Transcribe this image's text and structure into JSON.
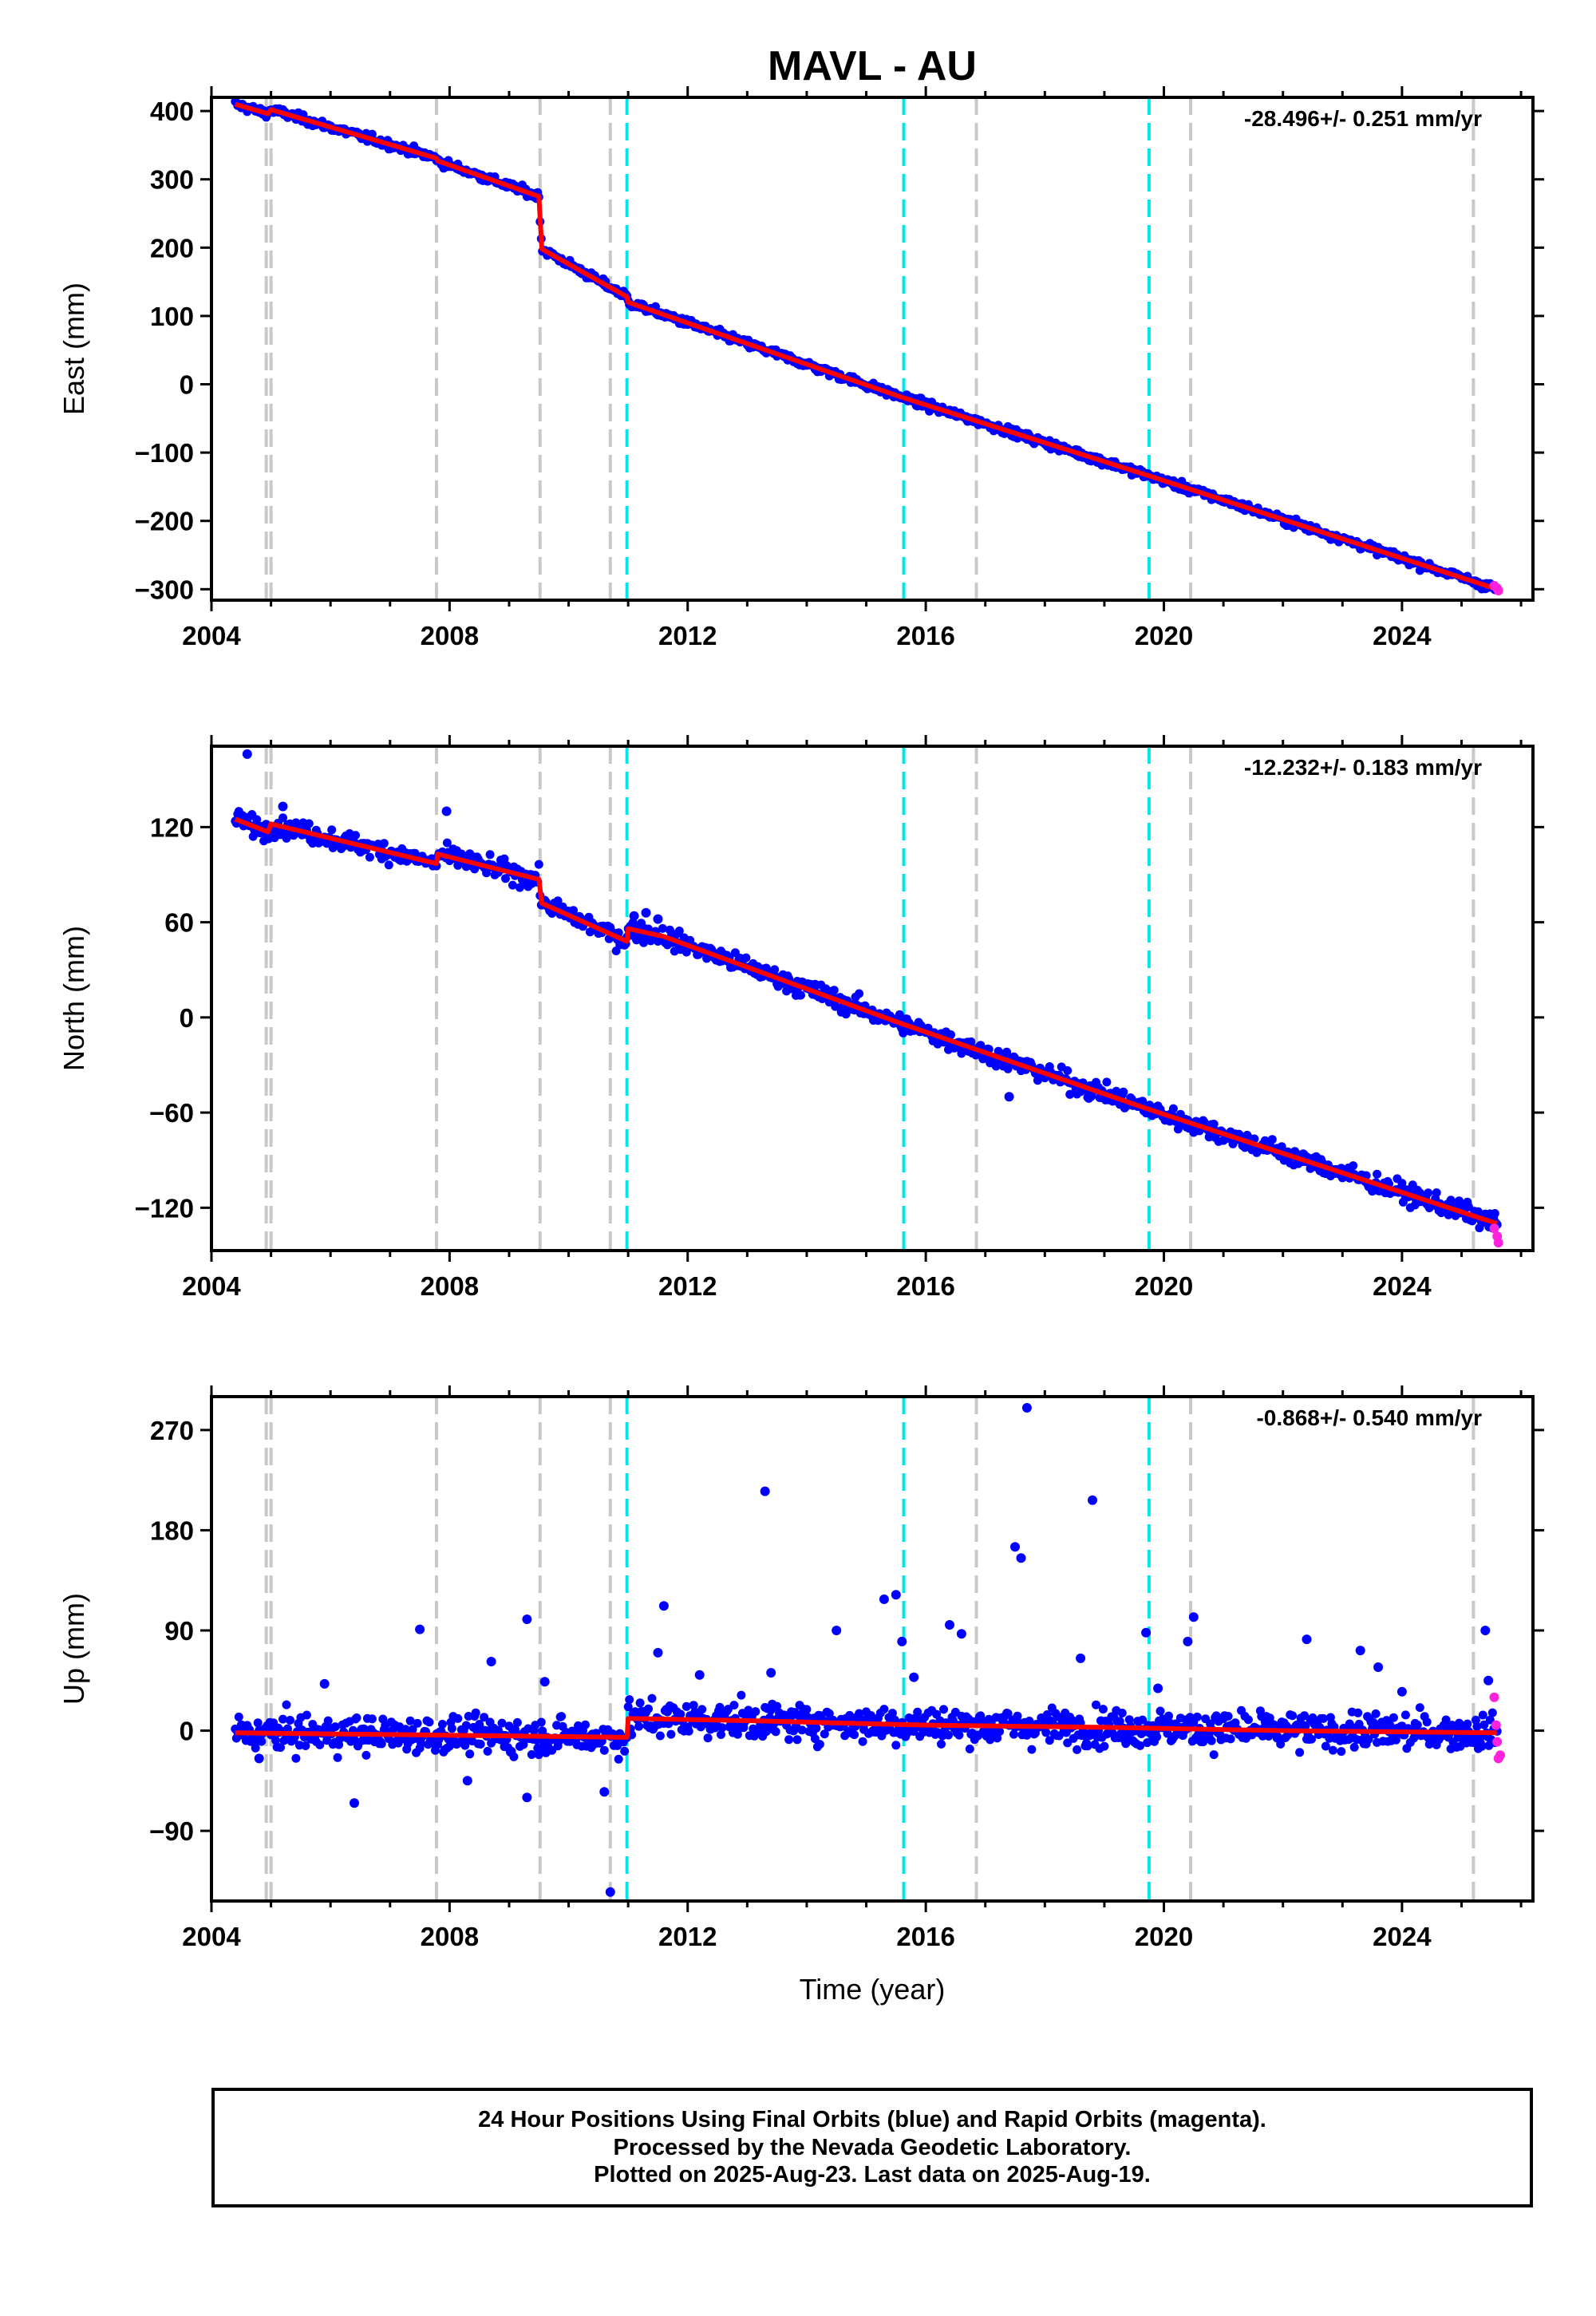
{
  "title": "MAVL - AU",
  "xlabel": "Time (year)",
  "x_ticks": [
    "2004",
    "2008",
    "2012",
    "2016",
    "2020",
    "2024"
  ],
  "colors": {
    "final_orbit": "#0000ff",
    "rapid_orbit": "#ff22dd",
    "model": "#ff0000",
    "equipment_change": "#c8c8c8",
    "earthquake": "#00e5ee"
  },
  "equipment_change_years": [
    2004.92,
    2005.0,
    2007.78,
    2009.52,
    2010.7,
    2016.85,
    2020.45,
    2025.2
  ],
  "earthquake_years": [
    2010.98,
    2015.63,
    2019.75
  ],
  "footer": {
    "line1": "24 Hour Positions Using Final Orbits (blue) and Rapid Orbits (magenta).",
    "line2": "Processed by the Nevada Geodetic Laboratory.",
    "line3": "Plotted on 2025-Aug-23. Last data on 2025-Aug-19."
  },
  "chart_data": [
    {
      "type": "scatter",
      "component": "east",
      "ylabel": "East (mm)",
      "rate_text": "-28.496+/- 0.251 mm/yr",
      "xlim": [
        2004.0,
        2026.2
      ],
      "ylim": [
        -316,
        420
      ],
      "y_ticks": [
        400,
        300,
        200,
        100,
        0,
        -100,
        -200,
        -300
      ],
      "y_tick_labels": [
        "400",
        "300",
        "200",
        "100",
        "0",
        "−100",
        "−200",
        "−300"
      ],
      "model_x": [
        2004.4,
        2004.95,
        2005.0,
        2007.78,
        2007.8,
        2009.5,
        2009.55,
        2010.98,
        2011.0,
        2015.6,
        2019.75,
        2025.6
      ],
      "model_y": [
        410,
        396,
        402,
        331,
        327,
        275,
        198,
        128,
        120,
        -19,
        -134,
        -300
      ],
      "scatter_sigma": 3,
      "rapid": {
        "x": [
          2025.55,
          2025.6,
          2025.62
        ],
        "y": [
          -295,
          -299,
          -302
        ]
      }
    },
    {
      "type": "scatter",
      "component": "north",
      "ylabel": "North (mm)",
      "rate_text": "-12.232+/- 0.183 mm/yr",
      "xlim": [
        2004.0,
        2026.2
      ],
      "ylim": [
        -147,
        171
      ],
      "y_ticks": [
        120,
        60,
        0,
        -60,
        -120
      ],
      "y_tick_labels": [
        "120",
        "60",
        "0",
        "−60",
        "−120"
      ],
      "model_x": [
        2004.4,
        2004.95,
        2005.0,
        2007.78,
        2007.8,
        2009.5,
        2009.55,
        2010.98,
        2011.0,
        2011.6,
        2015.6,
        2019.75,
        2025.6
      ],
      "model_y": [
        125,
        117,
        122,
        97,
        103,
        87,
        72,
        48,
        56,
        51,
        -4,
        -58,
        -130
      ],
      "scatter_sigma": 3,
      "outliers": {
        "x": [
          2004.6,
          2007.95,
          2005.2,
          2011.1,
          2011.3,
          2011.5,
          2017.4
        ],
        "y": [
          166,
          130,
          133,
          64,
          66,
          62,
          -50
        ]
      },
      "rapid": {
        "x": [
          2025.55,
          2025.6,
          2025.62
        ],
        "y": [
          -133,
          -138,
          -142
        ]
      }
    },
    {
      "type": "scatter",
      "component": "up",
      "ylabel": "Up (mm)",
      "rate_text": "-0.868+/- 0.540 mm/yr",
      "xlim": [
        2004.0,
        2026.2
      ],
      "ylim": [
        -153,
        300
      ],
      "y_ticks": [
        270,
        180,
        90,
        0,
        -90
      ],
      "y_tick_labels": [
        "270",
        "180",
        "90",
        "0",
        "−90"
      ],
      "model_x": [
        2004.4,
        2007.8,
        2010.98,
        2011.0,
        2013.0,
        2016.0,
        2019.0,
        2022.0,
        2025.6
      ],
      "model_y": [
        -2,
        -4,
        -6,
        11,
        9,
        5,
        3,
        0,
        -2
      ],
      "scatter_sigma": 8,
      "outliers": {
        "x": [
          2004.8,
          2005.9,
          2006.4,
          2007.5,
          2008.3,
          2008.7,
          2009.3,
          2009.6,
          2009.3,
          2010.6,
          2010.7,
          2011.6,
          2011.5,
          2012.2,
          2013.3,
          2013.4,
          2014.5,
          2015.3,
          2015.5,
          2015.6,
          2015.8,
          2016.4,
          2016.6,
          2017.5,
          2017.6,
          2017.7,
          2018.6,
          2018.8,
          2019.7,
          2019.9,
          2020.5,
          2020.4,
          2022.4,
          2023.3,
          2023.6,
          2024.0,
          2025.4,
          2025.45
        ],
        "y": [
          -25,
          42,
          -65,
          91,
          -45,
          62,
          100,
          44,
          -60,
          -55,
          -145,
          112,
          70,
          50,
          215,
          52,
          90,
          118,
          122,
          80,
          48,
          95,
          87,
          165,
          155,
          290,
          65,
          207,
          88,
          38,
          102,
          80,
          82,
          72,
          57,
          35,
          90,
          45
        ]
      },
      "rapid": {
        "x": [
          2025.55,
          2025.58,
          2025.6,
          2025.62,
          2025.65
        ],
        "y": [
          30,
          5,
          -10,
          -25,
          -22
        ]
      }
    }
  ]
}
